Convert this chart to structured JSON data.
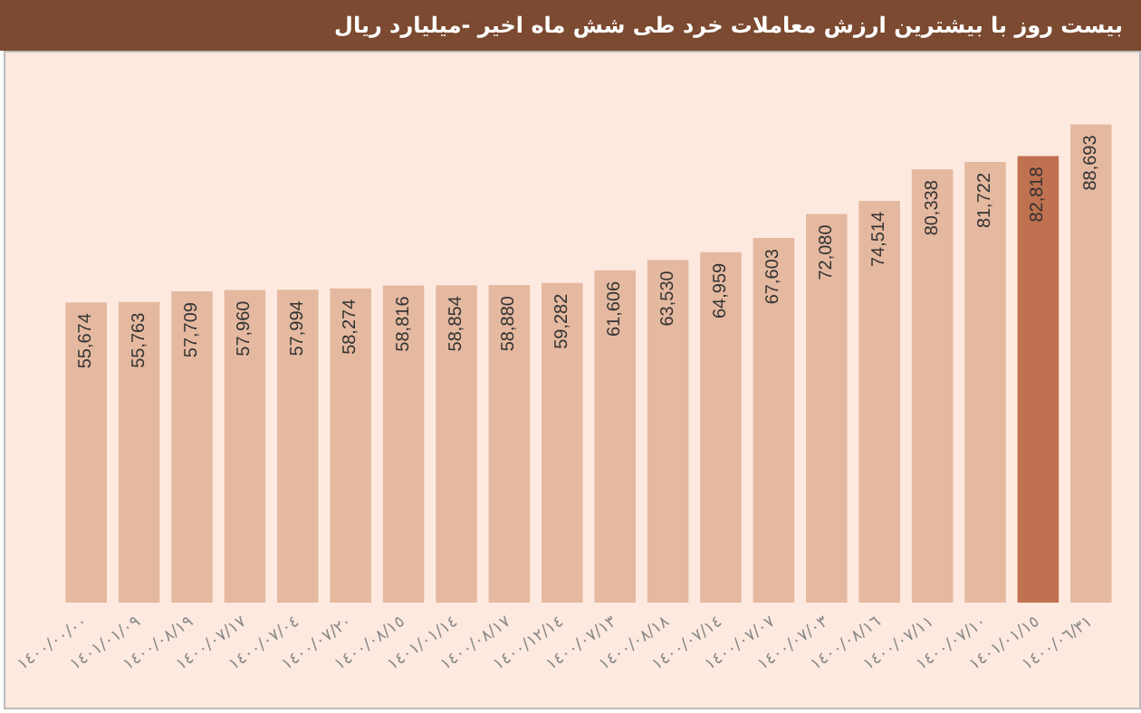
{
  "chart_data": {
    "type": "bar",
    "title": "بیست روز با بیشترین ارزش معاملات خرد طی  شش ماه اخیر -میلیارد ریال",
    "categories": [
      "١٤٠٠/٠٠/٠٠",
      "١٤٠١/٠١/٠٩",
      "١٤٠٠/٠٨/١٩",
      "١٤٠٠/٠٧/١٧",
      "١٤٠٠/٠٧/٠٤",
      "١٤٠٠/٠٧/٢٠",
      "١٤٠٠/٠٨/١٥",
      "١٤٠١/٠١/١٤",
      "١٤٠٠/٠٨/١٧",
      "١٤٠٠/١٢/١٤",
      "١٤٠٠/٠٧/١٣",
      "١٤٠٠/٠٨/١٨",
      "١٤٠٠/٠٧/١٤",
      "١٤٠٠/٠٧/٠٧",
      "١٤٠٠/٠٧/٠٣",
      "١٤٠٠/٠٨/١٦",
      "١٤٠٠/٠٧/١١",
      "١٤٠٠/٠٧/١٠",
      "١٤٠١/٠١/١٥",
      "١٤٠٠/٠٦/٣١"
    ],
    "values": [
      55674,
      55763,
      57709,
      57960,
      57994,
      58274,
      58816,
      58854,
      58880,
      59282,
      61606,
      63530,
      64959,
      67603,
      72080,
      74514,
      80338,
      81722,
      82818,
      88693
    ],
    "colors": [
      "#e5b9a0",
      "#e5b9a0",
      "#e5b9a0",
      "#e5b9a0",
      "#e5b9a0",
      "#e5b9a0",
      "#e5b9a0",
      "#e5b9a0",
      "#e5b9a0",
      "#e5b9a0",
      "#e5b9a0",
      "#e5b9a0",
      "#e5b9a0",
      "#e5b9a0",
      "#e5b9a0",
      "#e5b9a0",
      "#e5b9a0",
      "#e5b9a0",
      "#c0714f",
      "#e5b9a0"
    ],
    "value_labels": [
      "55,674",
      "55,763",
      "57,709",
      "57,960",
      "57,994",
      "58,274",
      "58,816",
      "58,854",
      "58,880",
      "59,282",
      "61,606",
      "63,530",
      "64,959",
      "67,603",
      "72,080",
      "74,514",
      "80,338",
      "81,722",
      "82,818",
      "88,693"
    ],
    "tick_labels": "x"
  }
}
